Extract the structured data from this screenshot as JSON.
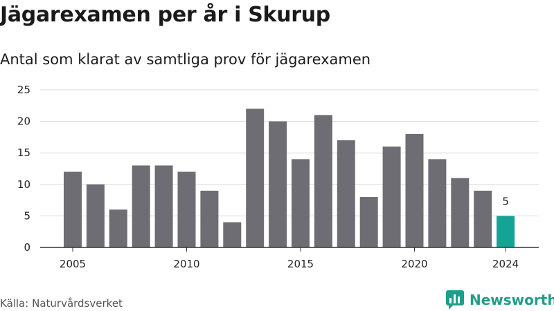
{
  "title": "Jägarexamen per år i Skurup",
  "subtitle": "Antal som klarat av samtliga prov för jägarexamen",
  "source": "Källa: Naturvårdsverket",
  "brand": {
    "name": "Newsworthy",
    "icon": "bar-chart-logo-icon",
    "color": "#1f9e8a"
  },
  "chart_data": {
    "type": "bar",
    "x": [
      2005,
      2006,
      2007,
      2008,
      2009,
      2010,
      2011,
      2012,
      2013,
      2014,
      2015,
      2016,
      2017,
      2018,
      2019,
      2020,
      2021,
      2022,
      2023,
      2024
    ],
    "values": [
      12,
      10,
      6,
      13,
      13,
      12,
      9,
      4,
      22,
      20,
      14,
      21,
      17,
      8,
      16,
      18,
      14,
      11,
      9,
      5
    ],
    "xticks": [
      "2005",
      "2010",
      "2015",
      "2020",
      "2024"
    ],
    "yticks": [
      0,
      5,
      10,
      15,
      20,
      25
    ],
    "ylim": [
      0,
      25
    ],
    "grid": true,
    "highlight": {
      "x": 2024,
      "value": 5,
      "label": "5",
      "color": "#14a394"
    },
    "bar_color": "#6e6d73"
  }
}
